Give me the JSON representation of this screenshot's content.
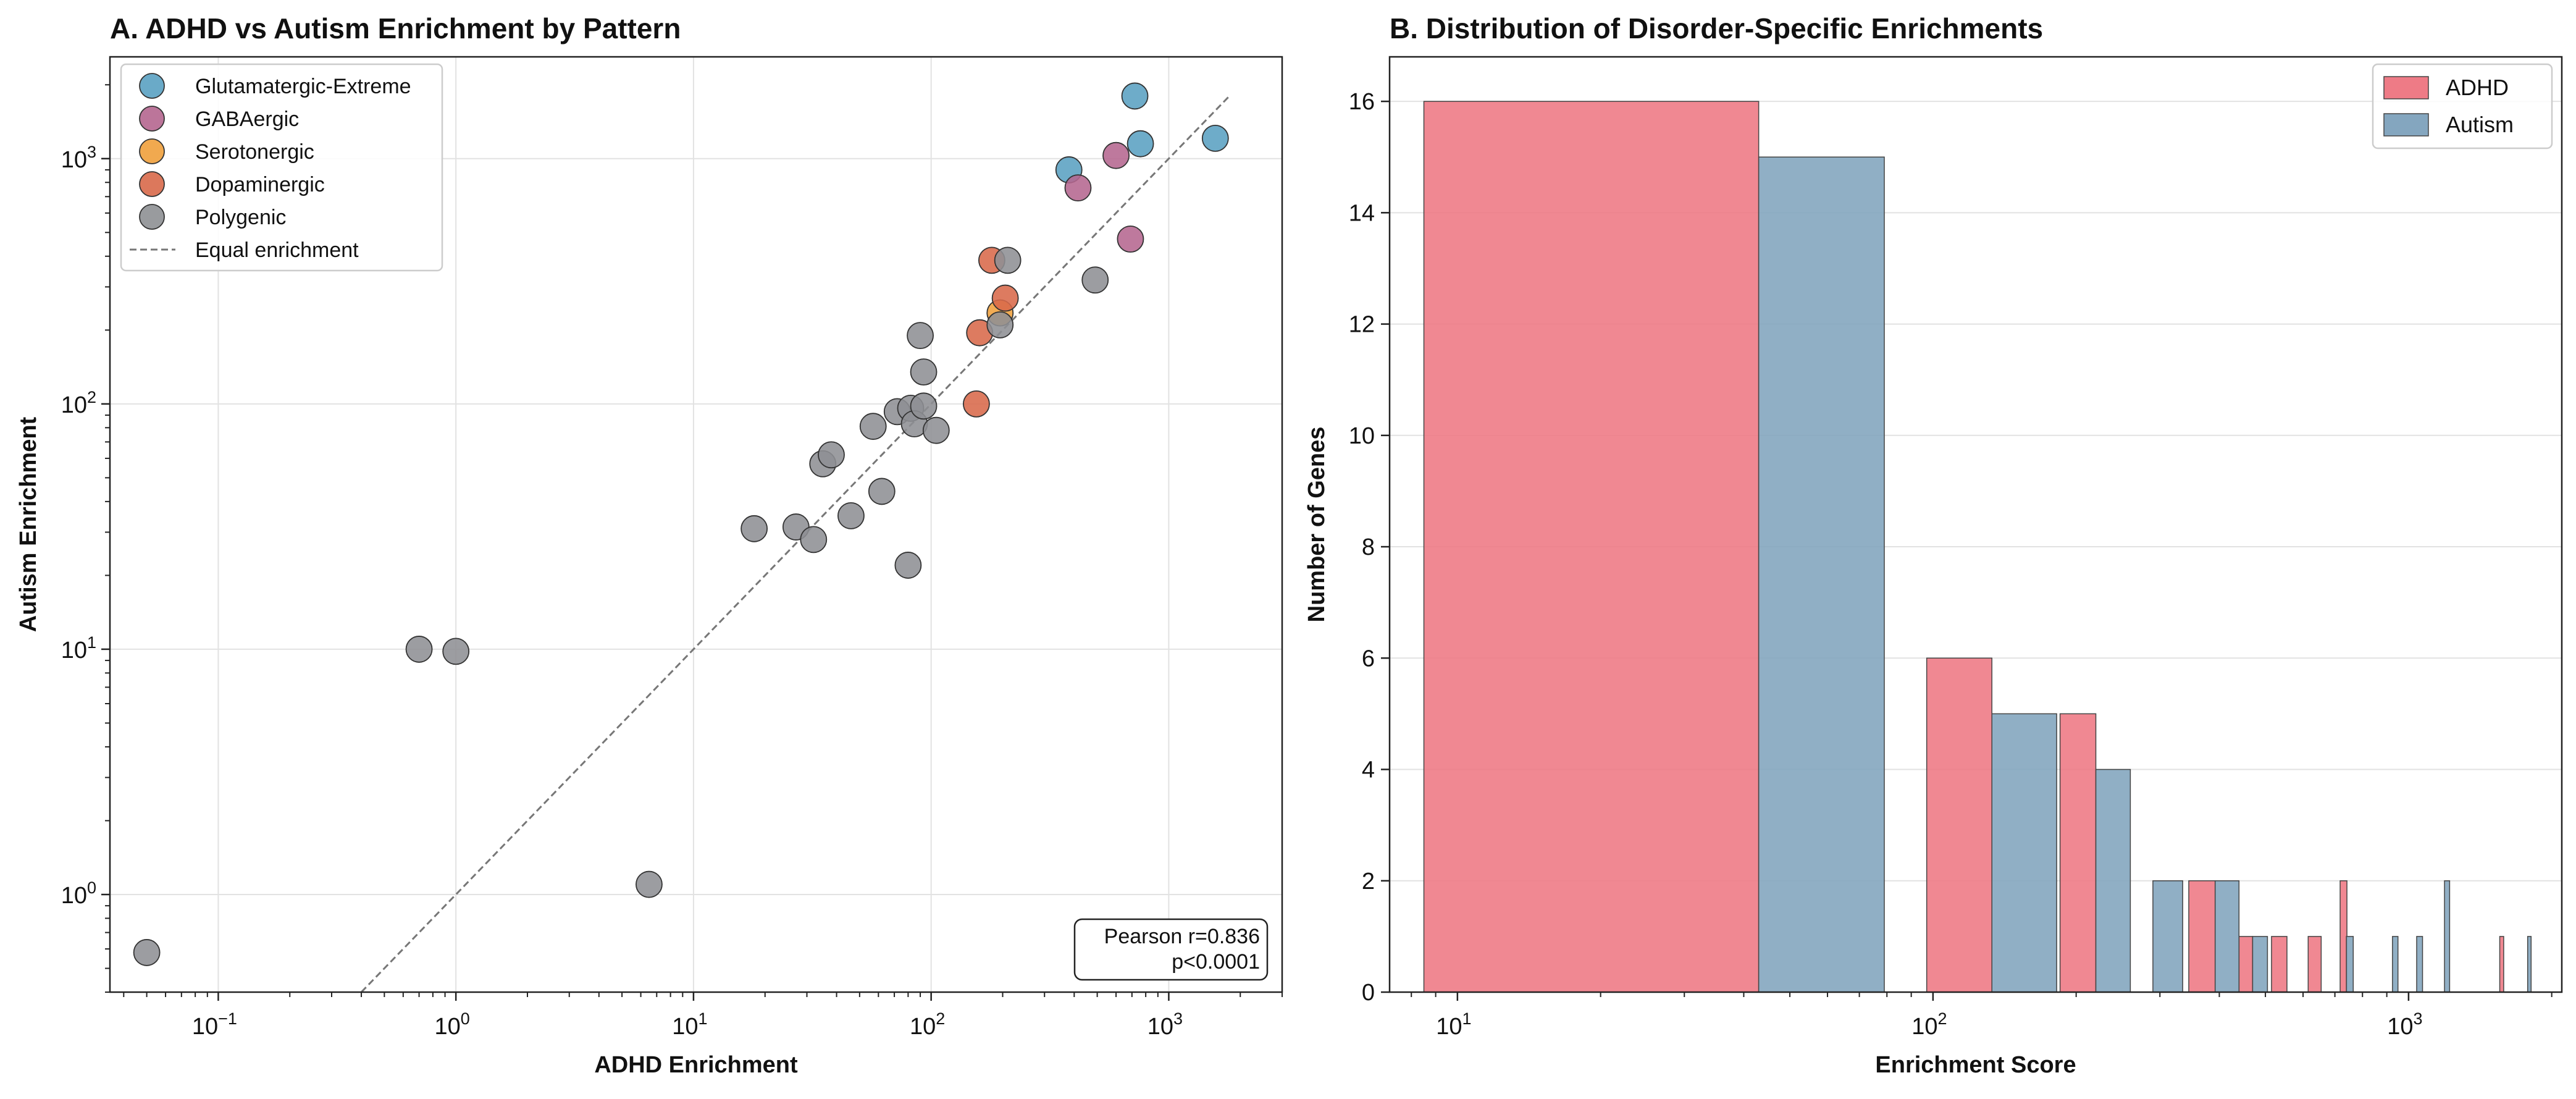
{
  "chart_data": [
    {
      "type": "scatter",
      "title": "A. ADHD vs Autism Enrichment by Pattern",
      "xlabel": "ADHD Enrichment",
      "ylabel": "Autism Enrichment",
      "x_scale": "log",
      "y_scale": "log",
      "xlim": [
        0.035,
        3000
      ],
      "ylim": [
        0.4,
        2600
      ],
      "x_ticks": [
        {
          "value": 0.1,
          "base": "10",
          "exp": "−1"
        },
        {
          "value": 1,
          "base": "10",
          "exp": "0"
        },
        {
          "value": 10,
          "base": "10",
          "exp": "1"
        },
        {
          "value": 100,
          "base": "10",
          "exp": "2"
        },
        {
          "value": 1000,
          "base": "10",
          "exp": "3"
        }
      ],
      "y_ticks": [
        {
          "value": 1,
          "base": "10",
          "exp": "0"
        },
        {
          "value": 10,
          "base": "10",
          "exp": "1"
        },
        {
          "value": 100,
          "base": "10",
          "exp": "2"
        },
        {
          "value": 1000,
          "base": "10",
          "exp": "3"
        }
      ],
      "grid": true,
      "legend_position": "top-left",
      "reference_line": {
        "label": "Equal enrichment",
        "from": 0.4,
        "to": 1800,
        "color": "#777777"
      },
      "series": [
        {
          "name": "Glutamatergic-Extreme",
          "color": "#5aa1c2",
          "points": [
            [
              380,
              900
            ],
            [
              720,
              1800
            ],
            [
              760,
              1150
            ],
            [
              1570,
              1210
            ]
          ]
        },
        {
          "name": "GABAergic",
          "color": "#b5668f",
          "points": [
            [
              600,
              1030
            ],
            [
              415,
              760
            ],
            [
              690,
              470
            ]
          ]
        },
        {
          "name": "Serotonergic",
          "color": "#f0a03c",
          "points": [
            [
              195,
              235
            ]
          ]
        },
        {
          "name": "Dopaminergic",
          "color": "#d8694a",
          "points": [
            [
              180,
              385
            ],
            [
              205,
              270
            ],
            [
              160,
              195
            ],
            [
              155,
              100
            ]
          ]
        },
        {
          "name": "Polygenic",
          "color": "#8e9094",
          "points": [
            [
              0.05,
              0.58
            ],
            [
              0.7,
              10
            ],
            [
              1.0,
              9.8
            ],
            [
              6.5,
              1.1
            ],
            [
              18,
              31
            ],
            [
              27,
              31.5
            ],
            [
              32,
              28
            ],
            [
              35,
              57
            ],
            [
              38,
              62
            ],
            [
              46,
              35
            ],
            [
              57,
              81
            ],
            [
              62,
              44
            ],
            [
              72,
              93
            ],
            [
              80,
              22
            ],
            [
              82,
              96
            ],
            [
              85,
              83
            ],
            [
              90,
              190
            ],
            [
              93,
              98
            ],
            [
              93,
              135
            ],
            [
              105,
              78
            ],
            [
              195,
              210
            ],
            [
              210,
              385
            ],
            [
              490,
              320
            ]
          ]
        }
      ],
      "annotation": [
        "Pearson r=0.836",
        "p<0.0001"
      ]
    },
    {
      "type": "bar",
      "title": "B. Distribution of Disorder-Specific Enrichments",
      "xlabel": "Enrichment Score",
      "ylabel": "Number of Genes",
      "x_scale": "log",
      "xlim": [
        7.2,
        2100
      ],
      "ylim": [
        0,
        16.8
      ],
      "x_ticks": [
        {
          "value": 10,
          "base": "10",
          "exp": "1"
        },
        {
          "value": 100,
          "base": "10",
          "exp": "2"
        },
        {
          "value": 1000,
          "base": "10",
          "exp": "3"
        }
      ],
      "y_ticks": [
        0,
        2,
        4,
        6,
        8,
        10,
        12,
        14,
        16
      ],
      "grid": "y",
      "legend_position": "top-right",
      "series": [
        {
          "name": "ADHD",
          "color": "#ee7b86",
          "bins": [
            {
              "from": 8.5,
              "to": 43,
              "count": 16
            },
            {
              "from": 97,
              "to": 133,
              "count": 6
            },
            {
              "from": 185,
              "to": 220,
              "count": 5
            },
            {
              "from": 345,
              "to": 392,
              "count": 2
            },
            {
              "from": 440,
              "to": 470,
              "count": 1
            },
            {
              "from": 515,
              "to": 555,
              "count": 1
            },
            {
              "from": 615,
              "to": 655,
              "count": 1
            },
            {
              "from": 718,
              "to": 742,
              "count": 2
            },
            {
              "from": 1555,
              "to": 1585,
              "count": 1
            }
          ]
        },
        {
          "name": "Autism",
          "color": "#84a6bf",
          "bins": [
            {
              "from": 43,
              "to": 79,
              "count": 15
            },
            {
              "from": 133,
              "to": 182,
              "count": 5
            },
            {
              "from": 220,
              "to": 260,
              "count": 4
            },
            {
              "from": 290,
              "to": 335,
              "count": 2
            },
            {
              "from": 392,
              "to": 440,
              "count": 2
            },
            {
              "from": 470,
              "to": 505,
              "count": 1
            },
            {
              "from": 740,
              "to": 765,
              "count": 1
            },
            {
              "from": 925,
              "to": 950,
              "count": 1
            },
            {
              "from": 1040,
              "to": 1070,
              "count": 1
            },
            {
              "from": 1190,
              "to": 1220,
              "count": 2
            },
            {
              "from": 1780,
              "to": 1810,
              "count": 1
            }
          ]
        }
      ]
    }
  ]
}
